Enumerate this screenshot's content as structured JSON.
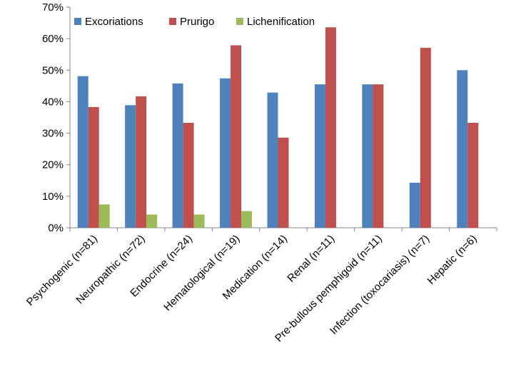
{
  "chart_data": {
    "type": "bar",
    "categories": [
      "Psychogenic (n=81)",
      "Neuropathic (n=72)",
      "Endocrine (n=24)",
      "Hematological (n=19)",
      "Medication (n=14)",
      "Renal (n=11)",
      "Pre-bullous pemphigoid (n=11)",
      "Infection (toxocariasis) (n=7)",
      "Hepatic (n=6)"
    ],
    "series": [
      {
        "name": "Excoriations",
        "color": "#4F81BD",
        "values": [
          48.1,
          38.9,
          45.8,
          47.4,
          42.9,
          45.5,
          45.5,
          14.3,
          50.0
        ]
      },
      {
        "name": "Prurigo",
        "color": "#C0504D",
        "values": [
          38.3,
          41.7,
          33.3,
          57.9,
          28.6,
          63.6,
          45.5,
          57.1,
          33.3
        ]
      },
      {
        "name": "Lichenification",
        "color": "#9BBB59",
        "values": [
          7.4,
          4.2,
          4.2,
          5.3,
          0,
          0,
          0,
          0,
          0
        ]
      }
    ],
    "yticks": [
      "0%",
      "10%",
      "20%",
      "30%",
      "40%",
      "50%",
      "60%",
      "70%"
    ],
    "ylim": [
      0,
      70
    ],
    "legend_position": "top-left",
    "grid": false
  }
}
